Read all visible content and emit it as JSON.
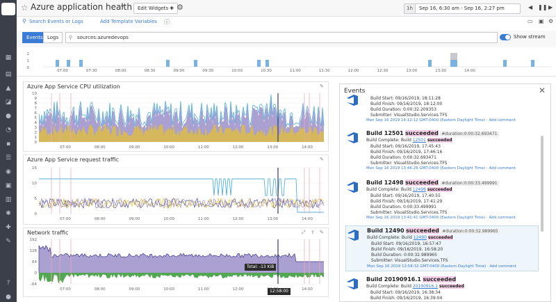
{
  "header": {
    "title": "Azure application health",
    "edit_widgets": "Edit Widgets",
    "time_unit": "1h",
    "time_range": "Sep 16, 6:30 am - Sep 16, 2:27 pm"
  },
  "toolbar": {
    "search_events": "Search Events or Logs",
    "add_template_vars": "Add Template Variables"
  },
  "events_bar": {
    "tab_events": "Events",
    "tab_logs": "Logs",
    "query": "sources:azuredevops",
    "show_stream": "Show stream"
  },
  "timeline": {
    "y_labels": [
      "2",
      "1",
      "0"
    ],
    "x_labels": [
      "07:00",
      "07:30",
      "08:00",
      "08:30",
      "09:00",
      "09:30",
      "10:00",
      "10:30",
      "11:00",
      "11:30",
      "12:00",
      "12:30",
      "13:00",
      "13:30",
      "14:00"
    ]
  },
  "widgets": [
    {
      "title": "Azure App Service CPU utilization",
      "y_labels": [
        "10",
        "9",
        "8",
        "7",
        "6",
        "5",
        "4",
        "3",
        "2",
        "1",
        "0"
      ],
      "x_labels": [
        "07:00",
        "08:00",
        "09:00",
        "10:00",
        "11:00",
        "12:00",
        "13:00",
        "14:00"
      ]
    },
    {
      "title": "Azure App Service request traffic",
      "y_labels": [
        "15",
        "10",
        "5",
        "0"
      ],
      "x_labels": [
        "07:00",
        "08:00",
        "09:00",
        "10:00",
        "11:00",
        "12:00",
        "13:00",
        "14:00"
      ]
    },
    {
      "title": "Network traffic",
      "y_labels": [
        "192",
        "128",
        "64",
        "0",
        "-64"
      ],
      "x_labels": [
        "07:00",
        "08:00",
        "09:00",
        "10:00",
        "11:00",
        "12:00",
        "13:00",
        "14:00"
      ],
      "tooltip": "Total: -13 KiB",
      "cursor_time": "12:58:00"
    }
  ],
  "events_panel": {
    "title": "Events",
    "items": [
      {
        "bullets": [
          "Build Start: 09/16/2019, 18:11:28",
          "Build Finish: 09/16/2019, 18:12:00",
          "Build Duration: 0:00:32.209353",
          "Submitter: VisualStudio.Services.TFS"
        ],
        "timestamp": "Mon Sep 16 2019 14:12:12 GMT-0400 (Eastern Daylight Time) · Add comment"
      },
      {
        "build": "Build 12501",
        "status": "succeeded",
        "duration_tag": "#duration:0:00:32.693471",
        "complete_prefix": "Build Complete: Build",
        "build_num": "12501",
        "bullets": [
          "Build Start: 09/16/2019, 17:45:43",
          "Build Finish: 09/16/2019, 17:46:16",
          "Build Duration: 0:00:32.693471",
          "Submitter: VisualStudio.Services.TFS"
        ],
        "timestamp": "Mon Sep 16 2019 13:46:28 GMT-0400 (Eastern Daylight Time) · Add comment"
      },
      {
        "build": "Build 12498",
        "status": "succeeded",
        "duration_tag": "#duration:0:00:33.499991",
        "complete_prefix": "Build Complete: Build",
        "build_num": "12498",
        "bullets": [
          "Build Start: 09/16/2019, 17:40:55",
          "Build Finish: 09/16/2019, 17:41:29",
          "Build Duration: 0:00:33.499991",
          "Submitter: VisualStudio.Services.TFS"
        ],
        "timestamp": "Mon Sep 16 2019 13:41:41 GMT-0400 (Eastern Daylight Time) · Add comment"
      },
      {
        "build": "Build 12490",
        "status": "succeeded",
        "duration_tag": "#duration:0:00:32.989965",
        "complete_prefix": "Build Complete: Build",
        "build_num": "12490",
        "bullets": [
          "Build Start: 09/16/2019, 16:57:47",
          "Build Finish: 09/16/2019, 16:58:20",
          "Build Duration: 0:00:32.989965",
          "Submitter: VisualStudio.Services.TFS"
        ],
        "timestamp": "Mon Sep 16 2019 12:58:32 GMT-0400 (Eastern Daylight Time) · Add comment"
      },
      {
        "build": "Build 20190916.1",
        "status": "succeeded",
        "complete_prefix": "Build Complete: Build",
        "build_num": "20190916.1",
        "bullets": [
          "Build Start: 09/16/2019, 16:38:34",
          "Build Finish: 09/16/2019, 16:39:04"
        ]
      }
    ]
  },
  "colors": {
    "accent": "#3a7bd5",
    "nav_bg": "#3a3f4a",
    "purple": "#9b8fc9",
    "teal": "#4fb0d9",
    "yellow": "#e6c229",
    "green": "#3f9d3f",
    "event_bar": "#7ab3e0"
  }
}
